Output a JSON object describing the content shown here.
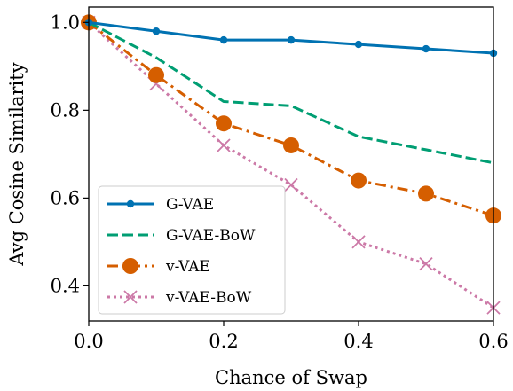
{
  "chart_data": {
    "type": "line",
    "xlabel": "Chance of Swap",
    "ylabel": "Avg Cosine Similarity",
    "xlim": [
      0.0,
      0.6
    ],
    "ylim": [
      0.32,
      1.035
    ],
    "xticks": [
      0.0,
      0.2,
      0.4,
      0.6
    ],
    "xtick_labels": [
      "0.0",
      "0.2",
      "0.4",
      "0.6"
    ],
    "yticks": [
      0.4,
      0.6,
      0.8,
      1.0
    ],
    "ytick_labels": [
      "0.4",
      "0.6",
      "0.8",
      "1.0"
    ],
    "grid": false,
    "legend_position": "lower-left",
    "x": [
      0.0,
      0.1,
      0.2,
      0.3,
      0.4,
      0.5,
      0.6
    ],
    "series": [
      {
        "name": "G-VAE",
        "values": [
          1.0,
          0.98,
          0.96,
          0.96,
          0.95,
          0.94,
          0.93
        ],
        "color": "#0072b2",
        "dash": "solid",
        "marker": "dot"
      },
      {
        "name": "G-VAE-BoW",
        "values": [
          1.0,
          0.92,
          0.82,
          0.81,
          0.74,
          0.71,
          0.68
        ],
        "color": "#009e73",
        "dash": "dashed",
        "marker": "none"
      },
      {
        "name": "v-VAE",
        "values": [
          1.0,
          0.88,
          0.77,
          0.72,
          0.64,
          0.61,
          0.56
        ],
        "color": "#d55e00",
        "dash": "dashdot",
        "marker": "circle"
      },
      {
        "name": "v-VAE-BoW",
        "values": [
          1.0,
          0.86,
          0.72,
          0.63,
          0.5,
          0.45,
          0.35
        ],
        "color": "#cc79a7",
        "dash": "dotted",
        "marker": "x"
      }
    ]
  }
}
